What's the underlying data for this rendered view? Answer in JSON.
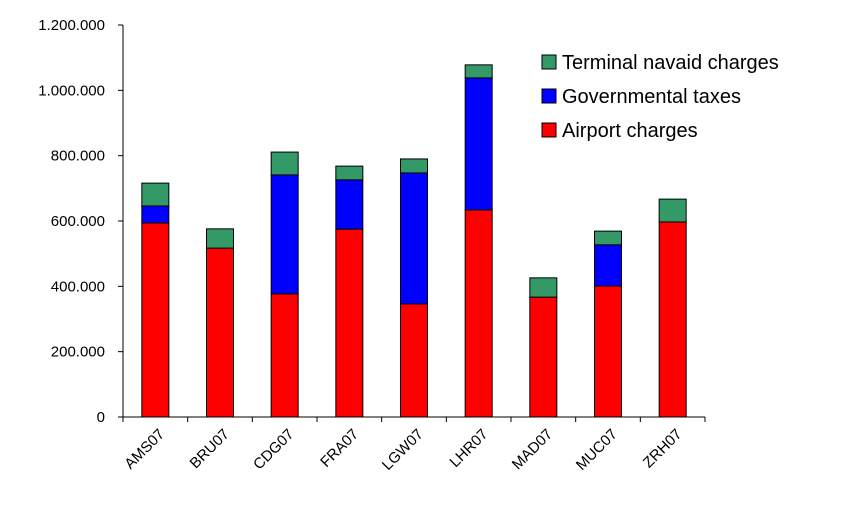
{
  "chart_data": {
    "type": "stacked-bar",
    "categories": [
      "AMS07",
      "BRU07",
      "CDG07",
      "FRA07",
      "LGW07",
      "LHR07",
      "MAD07",
      "MUC07",
      "ZRH07"
    ],
    "series": [
      {
        "name": "Airport charges",
        "color": "#ff0000",
        "values": [
          594000,
          517000,
          377000,
          575000,
          346000,
          634000,
          367000,
          401000,
          597000
        ]
      },
      {
        "name": "Governmental taxes",
        "color": "#0000ff",
        "values": [
          52000,
          0,
          364000,
          151000,
          401000,
          404000,
          0,
          126000,
          0
        ]
      },
      {
        "name": "Terminal navaid charges",
        "color": "#339966",
        "values": [
          70000,
          59000,
          70000,
          42000,
          43000,
          40000,
          59000,
          42000,
          70000
        ]
      }
    ],
    "ylim": [
      0,
      1200000
    ],
    "yticks": [
      0,
      {
        "value": 200000,
        "label": "200.000"
      },
      {
        "value": 400000,
        "label": "400.000"
      },
      {
        "value": 600000,
        "label": "600.000"
      },
      {
        "value": 800000,
        "label": "800.000"
      },
      {
        "value": 1000000,
        "label": "1.000.000"
      },
      {
        "value": 1200000,
        "label": "1.200.000"
      }
    ],
    "legend": "top-right"
  }
}
